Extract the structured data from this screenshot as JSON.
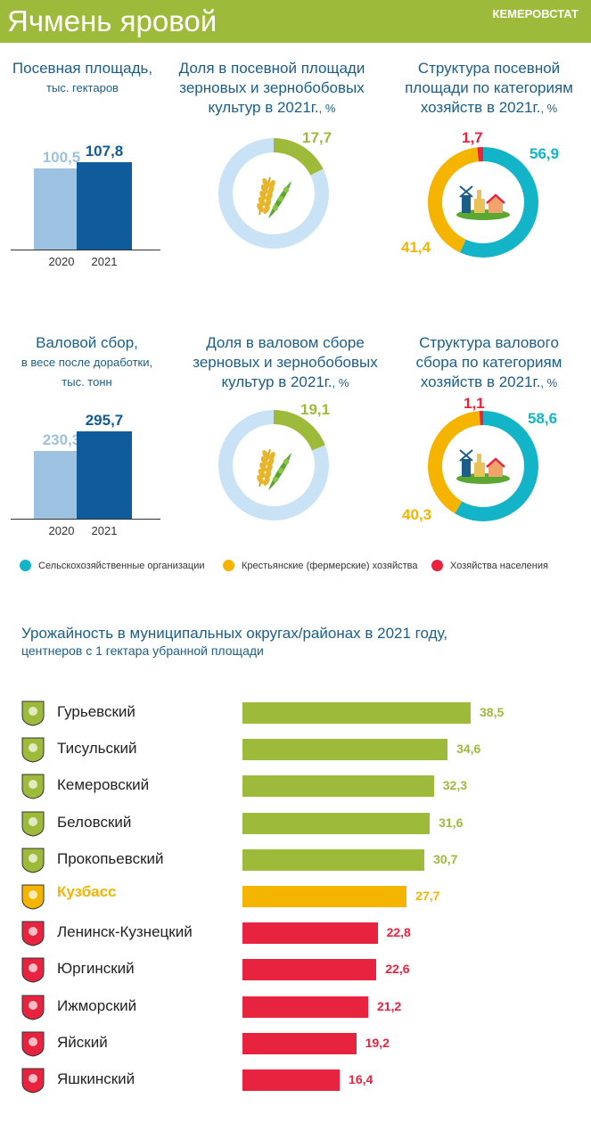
{
  "header": {
    "title": "Ячмень яровой",
    "org": "КЕМЕРОВСТАТ"
  },
  "colors": {
    "green": "#9dba3b",
    "light_blue": "#9cc1e1",
    "dark_blue": "#0f5b9b",
    "teal": "#13b4c7",
    "orange": "#f5b400",
    "red": "#e8233f",
    "donut_rest": "#c9e2f6"
  },
  "icons": {
    "wheat_pea": "wheat-and-pea-icon",
    "farm": "farm-icon",
    "emblem": "district-emblem-icon"
  },
  "area": {
    "title_line1": "Посевная площадь,",
    "title_line2": "тыс. гектаров",
    "share_title_l1": "Доля в посевной площади",
    "share_title_l2": "зерновых и зернобобовых",
    "share_title_l3": "культур в 2021г.",
    "share_title_unit": ", %",
    "struct_title_l1": "Структура посевной",
    "struct_title_l2": "площади  по категориям",
    "struct_title_l3": "хозяйств в 2021г.",
    "struct_title_unit": ", %"
  },
  "harvest": {
    "title_line1": "Валовой сбор,",
    "title_line2": "в весе после  доработки,",
    "title_line3": "тыс. тонн",
    "share_title_l1": "Доля в валовом сборе",
    "share_title_l2": "зерновых и зернобобовых",
    "share_title_l3": "культур в 2021г.",
    "share_title_unit": ", %",
    "struct_title_l1": "Структура валового",
    "struct_title_l2": "сбора по категориям",
    "struct_title_l3": "хозяйств в 2021г.",
    "struct_title_unit": ", %"
  },
  "legend": {
    "org": "Сельскохозяйственные   организации",
    "farm": "Крестьянские  (фермерские)  хозяйства",
    "household": "Хозяйства   населения"
  },
  "yield": {
    "title": "Урожайность в муниципальных  округах/районах в 2021 году,",
    "subtitle": "центнеров с 1 гектара убранной  площади"
  },
  "chart_data": [
    {
      "type": "bar",
      "categories": [
        "2020",
        "2021"
      ],
      "values": [
        100.5,
        107.8
      ],
      "labels": [
        "100,5",
        "107,8"
      ],
      "title": "Посевная площадь, тыс. гектаров"
    },
    {
      "type": "pie",
      "categories": [
        "Ячмень яровой"
      ],
      "values": [
        17.7
      ],
      "labels": [
        "17,7"
      ],
      "title": "Доля в посевной площади зерновых и зернобобовых культур в 2021г., %"
    },
    {
      "type": "pie",
      "categories": [
        "Сельскохозяйственные организации",
        "Крестьянские (фермерские) хозяйства",
        "Хозяйства населения"
      ],
      "values": [
        56.9,
        41.4,
        1.7
      ],
      "labels": [
        "56,9",
        "41,4",
        "1,7"
      ],
      "title": "Структура посевной площади по категориям хозяйств в 2021г., %"
    },
    {
      "type": "bar",
      "categories": [
        "2020",
        "2021"
      ],
      "values": [
        230.3,
        295.7
      ],
      "labels": [
        "230,3",
        "295,7"
      ],
      "title": "Валовой сбор, в весе после доработки, тыс. тонн"
    },
    {
      "type": "pie",
      "categories": [
        "Ячмень яровой"
      ],
      "values": [
        19.1
      ],
      "labels": [
        "19,1"
      ],
      "title": "Доля в валовом сборе зерновых и зернобобовых культур в 2021г., %"
    },
    {
      "type": "pie",
      "categories": [
        "Сельскохозяйственные организации",
        "Крестьянские (фермерские) хозяйства",
        "Хозяйства населения"
      ],
      "values": [
        58.6,
        40.3,
        1.1
      ],
      "labels": [
        "58,6",
        "40,3",
        "1,1"
      ],
      "title": "Структура валового сбора по категориям хозяйств в 2021г., %"
    },
    {
      "type": "bar",
      "orientation": "horizontal",
      "title": "Урожайность в муниципальных округах/районах в 2021 году, центнеров с 1 гектара убранной площади",
      "categories": [
        "Гурьевский",
        "Тисульский",
        "Кемеровский",
        "Беловский",
        "Прокопьевский",
        "Кузбасс",
        "Ленинск-Кузнецкий",
        "Юргинский",
        "Ижморский",
        "Яйский",
        "Яшкинский"
      ],
      "values": [
        38.5,
        34.6,
        32.3,
        31.6,
        30.7,
        27.7,
        22.8,
        22.6,
        21.2,
        19.2,
        16.4
      ],
      "labels": [
        "38,5",
        "34,6",
        "32,3",
        "31,6",
        "30,7",
        "27,7",
        "22,8",
        "22,6",
        "21,2",
        "19,2",
        "16,4"
      ],
      "colors": [
        "#9dba3b",
        "#9dba3b",
        "#9dba3b",
        "#9dba3b",
        "#9dba3b",
        "#f5b400",
        "#e8233f",
        "#e8233f",
        "#e8233f",
        "#e8233f",
        "#e8233f"
      ]
    }
  ]
}
